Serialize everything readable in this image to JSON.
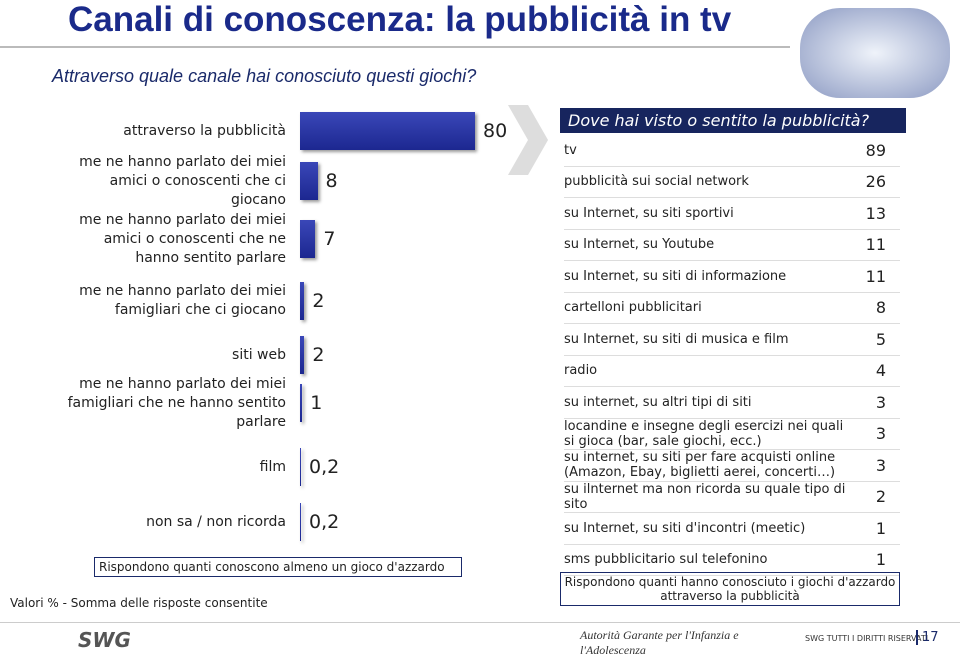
{
  "header": {
    "title": "Canali di conoscenza: la pubblicità in tv",
    "subtitle": "Attraverso quale canale hai conosciuto questi giochi?"
  },
  "chart_data": {
    "type": "bar",
    "orientation": "horizontal",
    "color": "#1c2790",
    "categories": [
      "attraverso la pubblicità",
      "me ne hanno parlato dei miei amici o conoscenti che ci giocano",
      "me ne hanno parlato dei miei amici o conoscenti che ne hanno sentito parlare",
      "me ne hanno parlato dei miei famigliari che ci giocano",
      "siti web",
      "me ne hanno parlato dei miei famigliari che ne hanno sentito parlare",
      "film",
      "non sa / non ricorda"
    ],
    "values": [
      80,
      8,
      7,
      2,
      2,
      1,
      0.2,
      0.2
    ],
    "value_labels": [
      "80",
      "8",
      "7",
      "2",
      "2",
      "1",
      "0,2",
      "0,2"
    ],
    "note": "Rispondono quanti conoscono almeno un gioco d'azzardo"
  },
  "table": {
    "title": "Dove hai visto o sentito la pubblicità?",
    "rows": [
      [
        "tv",
        "89"
      ],
      [
        "pubblicità sui social network",
        "26"
      ],
      [
        "su Internet, su siti sportivi",
        "13"
      ],
      [
        "su Internet, su Youtube",
        "11"
      ],
      [
        "su Internet, su siti di informazione",
        "11"
      ],
      [
        "cartelloni pubblicitari",
        "8"
      ],
      [
        "su Internet, su siti di musica e film",
        "5"
      ],
      [
        "radio",
        "4"
      ],
      [
        "su internet, su altri tipi di siti",
        "3"
      ],
      [
        "locandine e insegne degli esercizi nei quali si gioca (bar, sale giochi, ecc.)",
        "3"
      ],
      [
        "su internet, su siti per fare acquisti online (Amazon, Ebay, biglietti aerei, concerti…)",
        "3"
      ],
      [
        "su ilnternet ma non ricorda su quale tipo di sito",
        "2"
      ],
      [
        "su Internet, su siti d'incontri (meetic)",
        "1"
      ],
      [
        "sms pubblicitario sul telefonino",
        "1"
      ]
    ],
    "note": "Rispondono quanti hanno conosciuto i giochi d'azzardo attraverso la pubblicità"
  },
  "footer": {
    "values_note": "Valori % - Somma delle risposte consentite",
    "logo": "SWG",
    "authority": "Autorità Garante per l'Infanzia e l'Adolescenza",
    "rights": "SWG TUTTI I DIRITTI RISERVATI",
    "page": "17"
  }
}
